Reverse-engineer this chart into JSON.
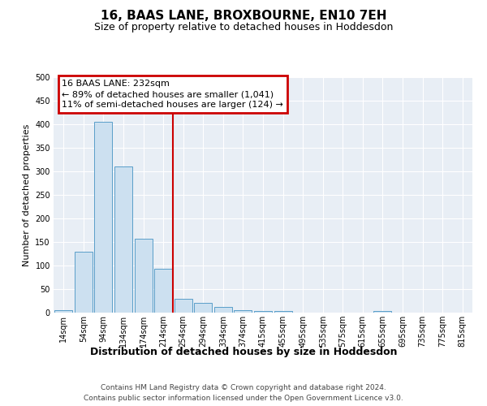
{
  "title": "16, BAAS LANE, BROXBOURNE, EN10 7EH",
  "subtitle": "Size of property relative to detached houses in Hoddesdon",
  "xlabel": "Distribution of detached houses by size in Hoddesdon",
  "ylabel": "Number of detached properties",
  "bar_labels": [
    "14sqm",
    "54sqm",
    "94sqm",
    "134sqm",
    "174sqm",
    "214sqm",
    "254sqm",
    "294sqm",
    "334sqm",
    "374sqm",
    "415sqm",
    "455sqm",
    "495sqm",
    "535sqm",
    "575sqm",
    "615sqm",
    "655sqm",
    "695sqm",
    "735sqm",
    "775sqm",
    "815sqm"
  ],
  "bar_heights": [
    5,
    130,
    405,
    310,
    157,
    93,
    30,
    20,
    12,
    5,
    4,
    4,
    0,
    0,
    0,
    0,
    3,
    0,
    0,
    0,
    0
  ],
  "bar_color": "#cce0f0",
  "bar_edge_color": "#5a9ec9",
  "property_line_x": 5.5,
  "property_line_color": "#cc0000",
  "ylim": [
    0,
    500
  ],
  "yticks": [
    0,
    50,
    100,
    150,
    200,
    250,
    300,
    350,
    400,
    450,
    500
  ],
  "annotation_title": "16 BAAS LANE: 232sqm",
  "annotation_line1": "← 89% of detached houses are smaller (1,041)",
  "annotation_line2": "11% of semi-detached houses are larger (124) →",
  "annotation_box_color": "#cc0000",
  "plot_bg_color": "#e8eef5",
  "grid_color": "#ffffff",
  "footer_line1": "Contains HM Land Registry data © Crown copyright and database right 2024.",
  "footer_line2": "Contains public sector information licensed under the Open Government Licence v3.0.",
  "title_fontsize": 11,
  "subtitle_fontsize": 9,
  "ylabel_fontsize": 8,
  "xlabel_fontsize": 9,
  "tick_fontsize": 7,
  "annotation_fontsize": 8
}
